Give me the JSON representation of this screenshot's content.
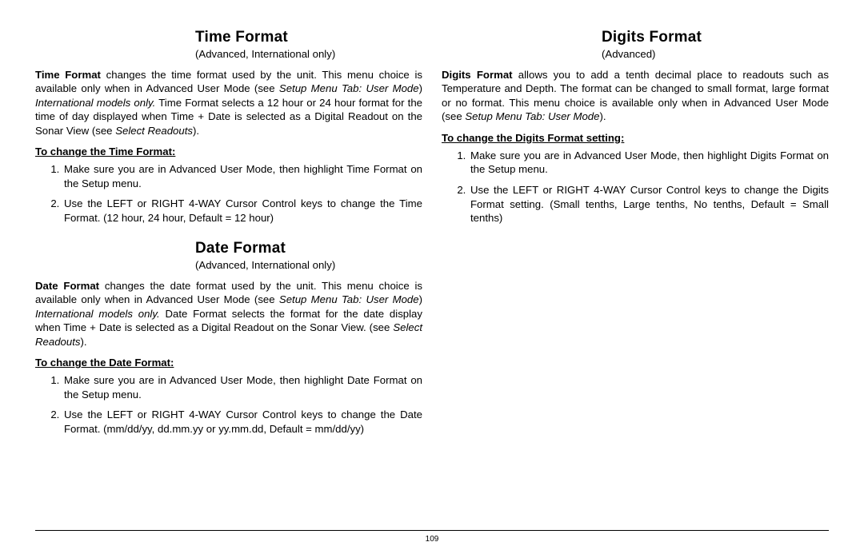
{
  "page_number": "109",
  "left": {
    "time": {
      "title": "Time Format",
      "subtitle": "(Advanced, International only)",
      "para_bold_lead": "Time Format",
      "para_text_1": " changes the time format used by the unit. This menu choice is available only when in Advanced User Mode (see ",
      "para_ref_1": "Setup Menu Tab: User Mode",
      "para_text_2": ") ",
      "para_ref_2": "International models only.",
      "para_text_3": " Time Format selects a 12 hour or 24 hour format for the time of day displayed when Time + Date is selected as a Digital Readout on the Sonar View (see ",
      "para_ref_3": "Select Readouts",
      "para_text_4": ").",
      "how_title": "To change the Time Format:",
      "step1": "Make sure you are in Advanced User Mode, then highlight Time Format on the Setup menu.",
      "step2": "Use the LEFT or RIGHT 4-WAY Cursor Control keys to change the Time Format. (12 hour, 24 hour, Default = 12 hour)"
    },
    "date": {
      "title": "Date Format",
      "subtitle": "(Advanced, International only)",
      "para_bold_lead": "Date Format",
      "para_text_1": " changes the date format used by the unit. This menu choice is available only when in Advanced User Mode (see ",
      "para_ref_1": "Setup Menu Tab: User Mode",
      "para_text_2": ") ",
      "para_ref_2": "International models only.",
      "para_text_3": " Date Format selects the format for the date display when Time + Date is selected as a Digital Readout on the Sonar View. (see ",
      "para_ref_3": "Select Readouts",
      "para_text_4": ").",
      "how_title": "To change the Date Format:",
      "step1": "Make sure you are in Advanced User Mode, then highlight Date Format on the Setup menu.",
      "step2": "Use the LEFT or RIGHT 4-WAY Cursor Control keys to change the Date Format. (mm/dd/yy, dd.mm.yy or yy.mm.dd, Default = mm/dd/yy)"
    }
  },
  "right": {
    "digits": {
      "title": "Digits Format",
      "subtitle": "(Advanced)",
      "para_bold_lead": "Digits Format",
      "para_text_1": " allows you to add a tenth decimal place to readouts such as Temperature and Depth. The format can be changed to small format, large format or no format. This menu choice is available only when in Advanced User Mode (see ",
      "para_ref_1": "Setup Menu Tab: User Mode",
      "para_text_2": ").",
      "how_title": "To change the Digits Format setting:",
      "step1": "Make sure you are in Advanced User Mode, then highlight Digits Format on the Setup menu.",
      "step2": "Use the LEFT or RIGHT 4-WAY Cursor Control keys to change the Digits Format setting. (Small tenths, Large tenths, No tenths, Default = Small tenths)"
    }
  }
}
